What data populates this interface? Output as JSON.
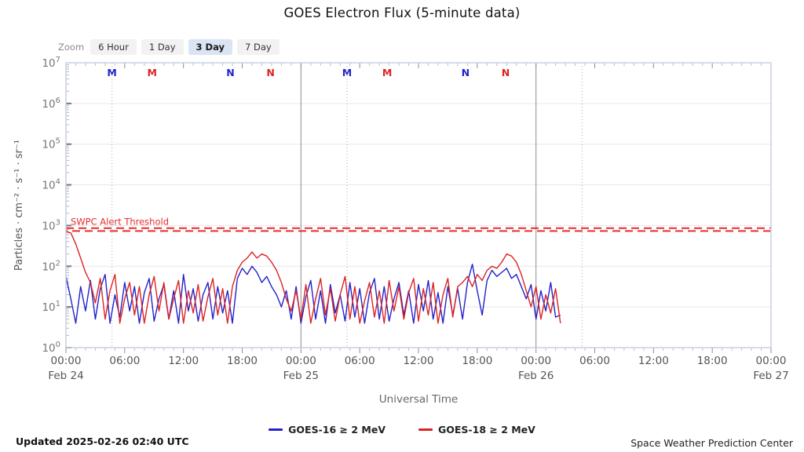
{
  "title": "GOES Electron Flux (5-minute data)",
  "zoom_control": {
    "label": "Zoom",
    "options": [
      "6 Hour",
      "1 Day",
      "3 Day",
      "7 Day"
    ],
    "active": "3 Day"
  },
  "footer": {
    "updated": "Updated 2025-02-26 02:40 UTC",
    "source": "Space Weather Prediction Center"
  },
  "chart_data": {
    "type": "line",
    "title": "GOES Electron Flux (5-minute data)",
    "xlabel": "Universal Time",
    "ylabel": "Particles · cm⁻² · s⁻¹ · sr⁻¹",
    "x_unit": "hours since Feb 24 00:00 UTC",
    "xlim": [
      0,
      72
    ],
    "y_scale": "log10",
    "ylog_lim": [
      0,
      7
    ],
    "y_tick_exponents": [
      0,
      1,
      2,
      3,
      4,
      5,
      6,
      7
    ],
    "x_ticks": [
      {
        "t": 0,
        "label": "00:00"
      },
      {
        "t": 6,
        "label": "06:00"
      },
      {
        "t": 12,
        "label": "12:00"
      },
      {
        "t": 18,
        "label": "18:00"
      },
      {
        "t": 24,
        "label": "00:00"
      },
      {
        "t": 30,
        "label": "06:00"
      },
      {
        "t": 36,
        "label": "12:00"
      },
      {
        "t": 42,
        "label": "18:00"
      },
      {
        "t": 48,
        "label": "00:00"
      },
      {
        "t": 54,
        "label": "06:00"
      },
      {
        "t": 60,
        "label": "12:00"
      },
      {
        "t": 66,
        "label": "18:00"
      },
      {
        "t": 72,
        "label": "00:00"
      }
    ],
    "date_labels": [
      {
        "t": 0,
        "label": "Feb 24"
      },
      {
        "t": 24,
        "label": "Feb 25"
      },
      {
        "t": 48,
        "label": "Feb 26"
      },
      {
        "t": 72,
        "label": "Feb 27"
      }
    ],
    "day_boundary_lines_t": [
      24,
      48
    ],
    "dotted_guide_lines_t": [
      4.7,
      28.7,
      52.7
    ],
    "threshold": {
      "label": "SWPC Alert Threshold",
      "log10_value": 2.9,
      "color": "#e82c2c"
    },
    "markers": [
      {
        "label": "M",
        "satellite": "GOES-16",
        "t": 4.7
      },
      {
        "label": "M",
        "satellite": "GOES-18",
        "t": 8.8
      },
      {
        "label": "N",
        "satellite": "GOES-16",
        "t": 16.8
      },
      {
        "label": "N",
        "satellite": "GOES-18",
        "t": 20.9
      },
      {
        "label": "M",
        "satellite": "GOES-16",
        "t": 28.7
      },
      {
        "label": "M",
        "satellite": "GOES-18",
        "t": 32.8
      },
      {
        "label": "N",
        "satellite": "GOES-16",
        "t": 40.8
      },
      {
        "label": "N",
        "satellite": "GOES-18",
        "t": 44.9
      }
    ],
    "legend_position": "bottom",
    "series": [
      {
        "name": "GOES-16 ≥ 2 MeV",
        "satellite": "GOES-16",
        "color": "#2222cc",
        "t_start": 0,
        "t_step_hours": 0.5,
        "log10_values": [
          1.75,
          1.2,
          0.6,
          1.5,
          0.9,
          1.65,
          0.7,
          1.45,
          1.8,
          0.6,
          1.3,
          0.75,
          1.6,
          0.9,
          1.5,
          0.6,
          1.35,
          1.7,
          0.65,
          1.2,
          1.55,
          0.7,
          1.4,
          0.6,
          1.8,
          0.9,
          1.45,
          0.65,
          1.3,
          1.6,
          0.7,
          1.5,
          0.85,
          1.4,
          0.6,
          1.7,
          1.95,
          1.8,
          2.0,
          1.85,
          1.6,
          1.75,
          1.5,
          1.3,
          1.0,
          1.4,
          0.7,
          1.5,
          0.6,
          1.25,
          1.65,
          0.7,
          1.4,
          0.6,
          1.55,
          0.85,
          1.3,
          0.65,
          1.6,
          0.75,
          1.45,
          0.6,
          1.35,
          1.7,
          0.7,
          1.5,
          0.65,
          1.2,
          1.6,
          0.8,
          1.4,
          0.6,
          1.55,
          0.9,
          1.65,
          0.7,
          1.35,
          0.6,
          1.5,
          0.8,
          1.45,
          0.7,
          1.6,
          2.05,
          1.4,
          0.8,
          1.65,
          1.9,
          1.75,
          1.85,
          1.95,
          1.7,
          1.8,
          1.5,
          1.2,
          1.55,
          0.7,
          1.4,
          0.9,
          1.6,
          0.75,
          0.8
        ]
      },
      {
        "name": "GOES-18 ≥ 2 MeV",
        "satellite": "GOES-18",
        "color": "#dd2222",
        "t_start": 0,
        "t_step_hours": 0.5,
        "log10_values": [
          2.85,
          2.82,
          2.55,
          2.2,
          1.85,
          1.6,
          1.1,
          1.7,
          0.7,
          1.4,
          1.8,
          0.6,
          1.2,
          1.6,
          0.8,
          1.5,
          0.6,
          1.3,
          1.75,
          0.9,
          1.6,
          0.7,
          1.2,
          1.65,
          0.6,
          1.4,
          0.85,
          1.55,
          0.65,
          1.25,
          1.7,
          0.8,
          1.45,
          0.6,
          1.5,
          1.9,
          2.1,
          2.2,
          2.35,
          2.2,
          2.3,
          2.25,
          2.1,
          1.9,
          1.6,
          1.2,
          0.9,
          1.4,
          0.7,
          1.55,
          0.6,
          1.2,
          1.7,
          0.8,
          1.45,
          0.65,
          1.3,
          1.75,
          0.7,
          1.5,
          0.6,
          1.15,
          1.6,
          0.75,
          1.4,
          0.6,
          1.65,
          0.9,
          1.5,
          0.7,
          1.35,
          1.7,
          0.65,
          1.45,
          0.8,
          1.6,
          0.6,
          1.3,
          1.7,
          0.75,
          1.5,
          1.6,
          1.75,
          1.5,
          1.8,
          1.65,
          1.9,
          2.0,
          1.95,
          2.1,
          2.3,
          2.25,
          2.1,
          1.8,
          1.4,
          1.0,
          1.5,
          0.7,
          1.3,
          0.85,
          1.45,
          0.6
        ]
      }
    ]
  }
}
